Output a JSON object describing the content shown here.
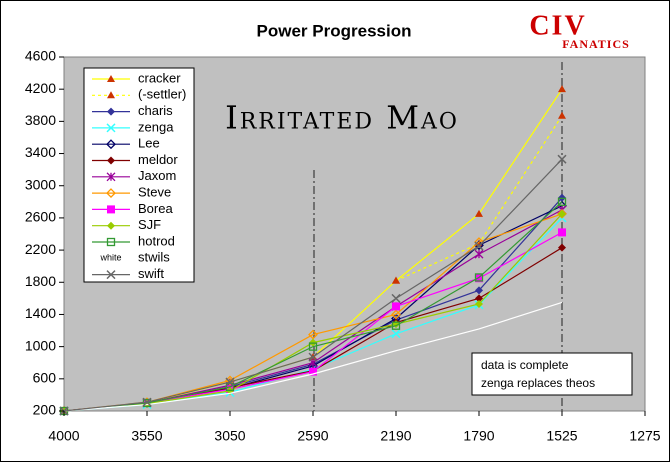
{
  "chart_data": {
    "type": "line",
    "title": "Power Progression",
    "annotation_main": "Irritated Mao",
    "annotation_box": [
      "data is complete",
      "zenga replaces theos"
    ],
    "logo": {
      "top": "CIV",
      "bottom": "FANATICS"
    },
    "legend_marker_text": "white",
    "categories": [
      "4000",
      "3550",
      "3050",
      "2590",
      "2190",
      "1790",
      "1525",
      "1275"
    ],
    "ylim": [
      200,
      4600
    ],
    "yticks": [
      200,
      600,
      1000,
      1400,
      1800,
      2200,
      2600,
      3000,
      3400,
      3800,
      4200,
      4600
    ],
    "grid": false,
    "legend": "top-left",
    "series": [
      {
        "name": "cracker",
        "color": "#ffff00",
        "marker": "triangle",
        "marker_color": "#cc3300",
        "values": [
          200,
          300,
          560,
          870,
          1820,
          2650,
          4200,
          null
        ]
      },
      {
        "name": "(-settler)",
        "color": "#ffff00",
        "marker": "triangle",
        "marker_color": "#cc3300",
        "dash": true,
        "values": [
          null,
          null,
          null,
          null,
          1820,
          2280,
          3870,
          null
        ]
      },
      {
        "name": "charis",
        "color": "#333399",
        "marker": "diamond",
        "marker_color": "#333399",
        "values": [
          200,
          300,
          500,
          780,
          1330,
          1700,
          2850,
          null
        ]
      },
      {
        "name": "zenga",
        "color": "#33ffff",
        "marker": "x",
        "marker_color": "#33ffff",
        "values": [
          200,
          280,
          430,
          720,
          1160,
          1520,
          2600,
          null
        ]
      },
      {
        "name": "Lee",
        "color": "#000066",
        "marker": "odiamond",
        "marker_color": "#000066",
        "values": [
          200,
          300,
          480,
          760,
          1350,
          2260,
          2750,
          null
        ]
      },
      {
        "name": "meldor",
        "color": "#800000",
        "marker": "diamond",
        "marker_color": "#800000",
        "values": [
          200,
          300,
          490,
          700,
          1300,
          1600,
          2230,
          null
        ]
      },
      {
        "name": "Jaxom",
        "color": "#990099",
        "marker": "star",
        "marker_color": "#990099",
        "values": [
          200,
          300,
          520,
          800,
          1500,
          2150,
          2700,
          null
        ]
      },
      {
        "name": "Steve",
        "color": "#ff9900",
        "marker": "odiamond",
        "marker_color": "#ff9900",
        "values": [
          200,
          310,
          580,
          1150,
          1400,
          2300,
          2650,
          null
        ]
      },
      {
        "name": "Borea",
        "color": "#ff00ff",
        "marker": "square",
        "marker_color": "#ff00ff",
        "values": [
          200,
          300,
          470,
          690,
          1500,
          1850,
          2420,
          null
        ]
      },
      {
        "name": "SJF",
        "color": "#99cc00",
        "marker": "diamond",
        "marker_color": "#99cc00",
        "values": [
          200,
          290,
          450,
          1050,
          1280,
          1530,
          2650,
          null
        ]
      },
      {
        "name": "hotrod",
        "color": "#339933",
        "marker": "osquare",
        "marker_color": "#339933",
        "values": [
          200,
          300,
          500,
          1000,
          1260,
          1860,
          2800,
          null
        ]
      },
      {
        "name": "stwils",
        "color": "#ffffff",
        "marker": "none",
        "marker_color": "#ffffff",
        "values": [
          200,
          280,
          420,
          660,
          950,
          1220,
          1550,
          null
        ]
      },
      {
        "name": "swift",
        "color": "#666666",
        "marker": "x",
        "marker_color": "#666666",
        "values": [
          200,
          310,
          560,
          870,
          1600,
          2250,
          3330,
          null
        ]
      }
    ]
  }
}
